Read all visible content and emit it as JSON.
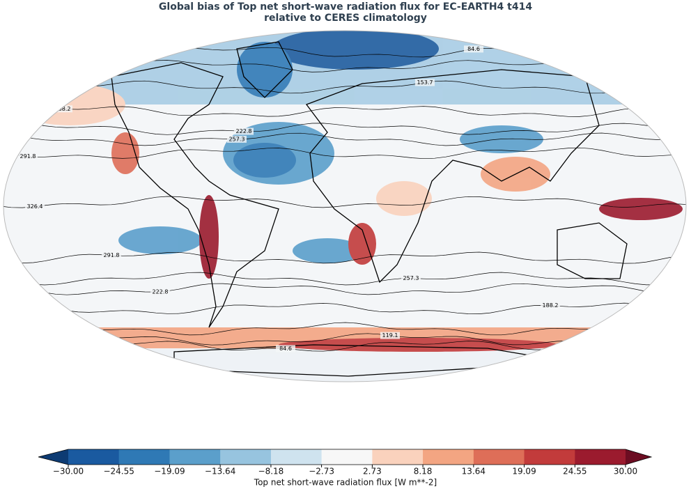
{
  "chart_data": {
    "type": "contour-map",
    "title": "Global bias of Top net short-wave radiation flux for EC-EARTH4 t414",
    "subtitle": "relative to CERES climatology",
    "contour_levels": [
      84.6,
      119.1,
      153.7,
      188.2,
      222.8,
      257.3,
      291.8,
      326.4
    ],
    "colorbar": {
      "label": "Top net short-wave radiation flux [W m**-2]",
      "ticks": [
        {
          "value": -30,
          "label": "−30.00"
        },
        {
          "value": -24.55,
          "label": "−24.55"
        },
        {
          "value": -19.09,
          "label": "−19.09"
        },
        {
          "value": -13.64,
          "label": "−13.64"
        },
        {
          "value": -8.18,
          "label": "−8.18"
        },
        {
          "value": -2.73,
          "label": "−2.73"
        },
        2.73,
        8.18,
        13.64,
        19.09,
        24.55,
        {
          "value": 30,
          "label": "30.00"
        }
      ],
      "colors": [
        "#1a5aa0",
        "#2f79b5",
        "#5b9fcb",
        "#97c4df",
        "#cfe3ef",
        "#f7f7f7",
        "#fad2bd",
        "#f3a582",
        "#de6e58",
        "#c23b3b",
        "#9b1b2e"
      ],
      "under_color": "#0d3b73",
      "over_color": "#6c0d22"
    }
  }
}
